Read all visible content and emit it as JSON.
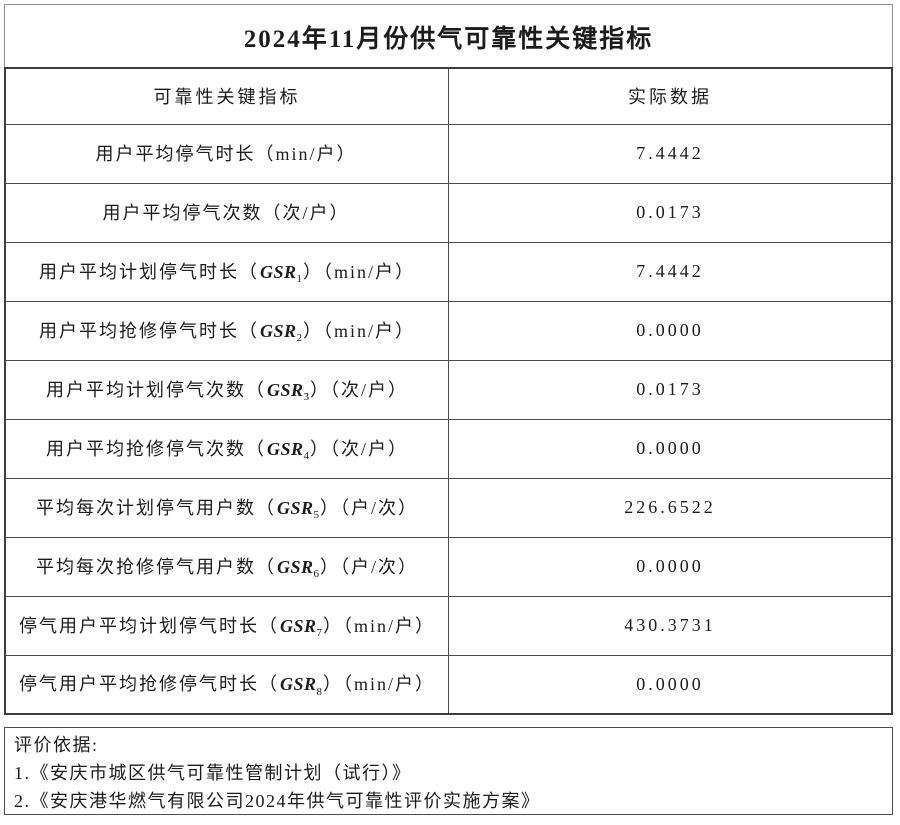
{
  "title": "2024年11月份供气可靠性关键指标",
  "table": {
    "headers": [
      "可靠性关键指标",
      "实际数据"
    ],
    "rows": [
      {
        "pre": "用户平均停气时长（min/户）",
        "gsr": "",
        "sub": "",
        "post": "",
        "value": "7.4442"
      },
      {
        "pre": "用户平均停气次数（次/户）",
        "gsr": "",
        "sub": "",
        "post": "",
        "value": "0.0173"
      },
      {
        "pre": "用户平均计划停气时长（",
        "gsr": "GSR",
        "sub": "1",
        "post": "）（min/户）",
        "value": "7.4442"
      },
      {
        "pre": "用户平均抢修停气时长（",
        "gsr": "GSR",
        "sub": "2",
        "post": "）（min/户）",
        "value": "0.0000"
      },
      {
        "pre": "用户平均计划停气次数（",
        "gsr": "GSR",
        "sub": "3",
        "post": "）（次/户）",
        "value": "0.0173"
      },
      {
        "pre": "用户平均抢修停气次数（",
        "gsr": "GSR",
        "sub": "4",
        "post": "）（次/户）",
        "value": "0.0000"
      },
      {
        "pre": "平均每次计划停气用户数（",
        "gsr": "GSR",
        "sub": "5",
        "post": "）（户/次）",
        "value": "226.6522"
      },
      {
        "pre": "平均每次抢修停气用户数（",
        "gsr": "GSR",
        "sub": "6",
        "post": "）（户/次）",
        "value": "0.0000"
      },
      {
        "pre": "停气用户平均计划停气时长（",
        "gsr": "GSR",
        "sub": "7",
        "post": "）（min/户）",
        "value": "430.3731"
      },
      {
        "pre": "停气用户平均抢修停气时长（",
        "gsr": "GSR",
        "sub": "8",
        "post": "）（min/户）",
        "value": "0.0000"
      }
    ]
  },
  "notes": {
    "heading": "评价依据:",
    "items": [
      "1.《安庆市城区供气可靠性管制计划（试行）》",
      "2.《安庆港华燃气有限公司2024年供气可靠性评价实施方案》"
    ]
  }
}
